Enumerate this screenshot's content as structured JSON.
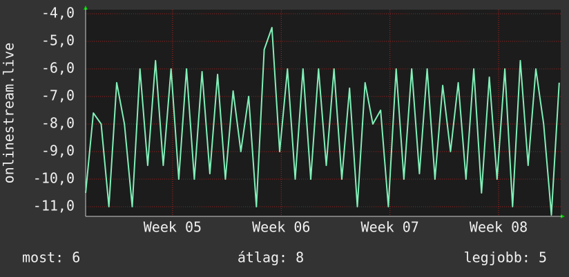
{
  "chart_data": {
    "type": "line",
    "y_label": "onlinestream.live",
    "x": [
      0,
      0.5,
      1,
      1.5,
      2,
      2.5,
      3,
      3.5,
      4,
      4.5,
      5,
      5.5,
      6,
      6.5,
      7,
      7.5,
      8,
      8.5,
      9,
      9.5,
      10,
      10.5,
      11,
      11.5,
      12,
      12.5,
      13,
      13.5,
      14,
      14.5,
      15,
      15.5,
      16,
      16.5,
      17,
      17.5,
      18,
      18.5,
      19,
      19.5,
      20,
      20.5,
      21,
      21.5,
      22,
      22.5,
      23,
      23.5,
      24,
      24.5,
      25,
      25.5,
      26,
      26.5,
      27,
      27.5,
      28,
      28.5,
      29,
      29.5,
      30,
      30.5
    ],
    "series": [
      {
        "name": "onlinestream.live",
        "color": "#80f0b8",
        "values": [
          -10.5,
          -7.6,
          -8,
          -11,
          -6.5,
          -8,
          -11,
          -6,
          -9.5,
          -5.7,
          -9.5,
          -6,
          -10,
          -6,
          -10,
          -6.1,
          -9.8,
          -6.2,
          -10,
          -6.8,
          -9,
          -7,
          -11,
          -5.3,
          -4.5,
          -9,
          -6,
          -10,
          -6,
          -10,
          -6,
          -9.5,
          -6,
          -10,
          -6.7,
          -11,
          -6.5,
          -8,
          -7.5,
          -11,
          -6,
          -10,
          -6,
          -9.8,
          -6,
          -10,
          -6.6,
          -9,
          -6.5,
          -10,
          -6,
          -10.5,
          -6.3,
          -10,
          -6,
          -11,
          -5.7,
          -9.5,
          -6,
          -8,
          -11.3,
          -6.5
        ]
      }
    ],
    "xlim": [
      0,
      30.6
    ],
    "xticks": [
      {
        "value": 5.6,
        "label": "Week 05"
      },
      {
        "value": 12.6,
        "label": "Week 06"
      },
      {
        "value": 19.6,
        "label": "Week 07"
      },
      {
        "value": 26.6,
        "label": "Week 08"
      }
    ],
    "ylim": [
      -11.35,
      -3.85
    ],
    "yticks": [
      {
        "value": -4,
        "label": "-4,0"
      },
      {
        "value": -5,
        "label": "-5,0"
      },
      {
        "value": -6,
        "label": "-6,0"
      },
      {
        "value": -7,
        "label": "-7,0"
      },
      {
        "value": -8,
        "label": "-8,0"
      },
      {
        "value": -9,
        "label": "-9,0"
      },
      {
        "value": -10,
        "label": "-10,0"
      },
      {
        "value": -11,
        "label": "-11,0"
      }
    ],
    "grid": true,
    "footer": [
      "most: 6",
      "átlag: 8",
      "legjobb: 5"
    ]
  }
}
